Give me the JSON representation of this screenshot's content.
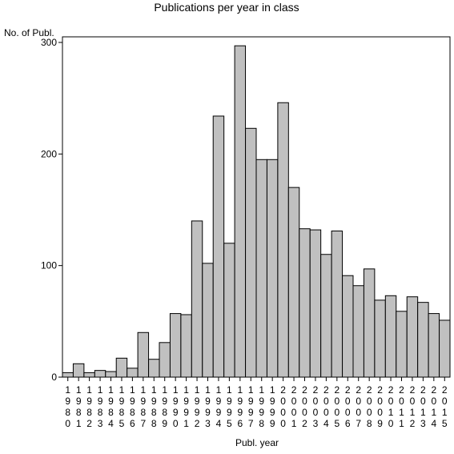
{
  "chart_data": {
    "type": "bar",
    "title": "Publications per year in class",
    "xlabel": "Publ. year",
    "ylabel": "No. of Publ.",
    "ylim": [
      0,
      300
    ],
    "yticks": [
      0,
      100,
      200,
      300
    ],
    "grid": false,
    "bar_color": "#c0c0c0",
    "categories": [
      "1980",
      "1981",
      "1982",
      "1983",
      "1984",
      "1985",
      "1986",
      "1987",
      "1988",
      "1989",
      "1990",
      "1991",
      "1992",
      "1993",
      "1994",
      "1995",
      "1996",
      "1997",
      "1998",
      "1999",
      "2000",
      "2001",
      "2002",
      "2003",
      "2004",
      "2005",
      "2006",
      "2007",
      "2008",
      "2009",
      "2010",
      "2011",
      "2012",
      "2013",
      "2014",
      "2015"
    ],
    "values": [
      4,
      12,
      4,
      6,
      5,
      17,
      8,
      40,
      16,
      31,
      57,
      56,
      140,
      102,
      234,
      120,
      297,
      223,
      195,
      195,
      246,
      170,
      133,
      132,
      110,
      131,
      91,
      82,
      97,
      69,
      73,
      59,
      72,
      67,
      57,
      51
    ]
  }
}
